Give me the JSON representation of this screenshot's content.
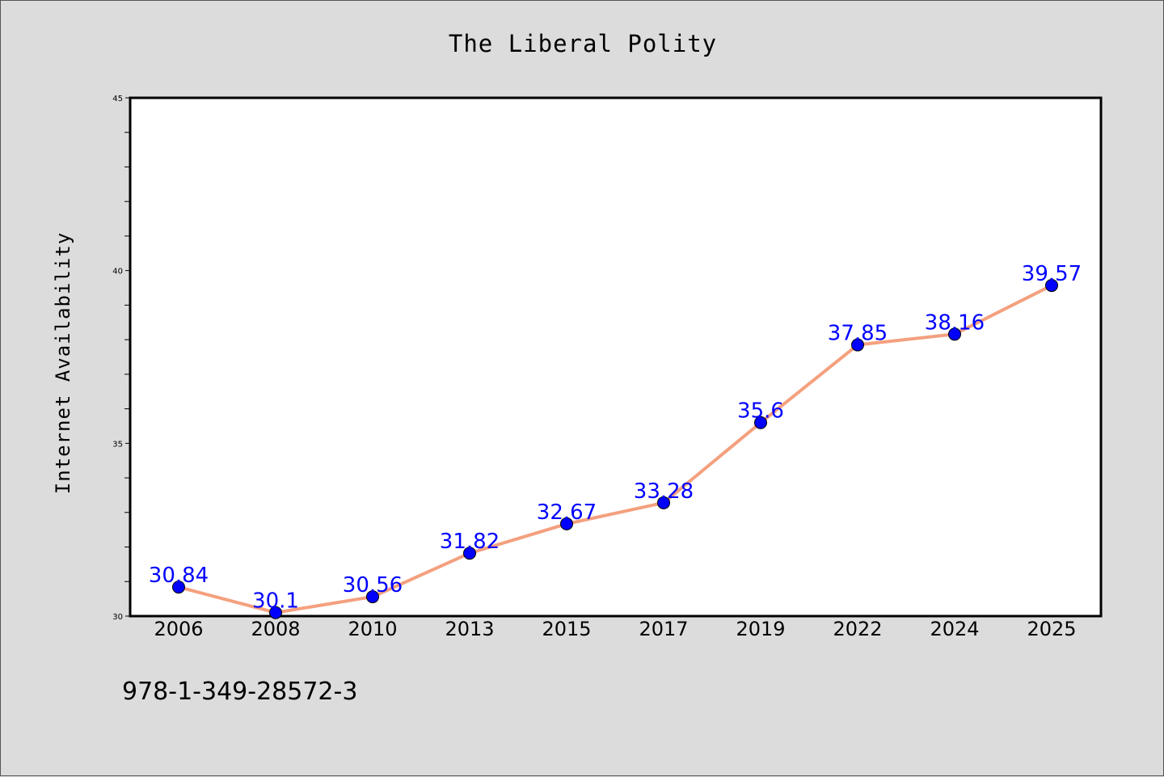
{
  "colors": {
    "background": "#dcdcdc",
    "plot_background": "#ffffff",
    "line": "#f4a07e",
    "marker": "#0000ff",
    "label": "#0000ff"
  },
  "footnote": "978-1-349-28572-3",
  "chart_data": {
    "type": "line",
    "title": "The Liberal Polity",
    "xlabel": "",
    "ylabel": "Internet Availability",
    "categories": [
      "2006",
      "2008",
      "2010",
      "2013",
      "2015",
      "2017",
      "2019",
      "2022",
      "2024",
      "2025"
    ],
    "series": [
      {
        "values": [
          30.84,
          30.1,
          30.56,
          31.82,
          32.67,
          33.28,
          35.6,
          37.85,
          38.16,
          39.57
        ],
        "labels": [
          "30.84",
          "30.1",
          "30.56",
          "31.82",
          "32.67",
          "33.28",
          "35.6",
          "37.85",
          "38.16",
          "39.57"
        ]
      }
    ],
    "ylim": [
      30,
      45
    ],
    "yticks": [
      "30",
      "35",
      "40",
      "45"
    ],
    "ytick_values": [
      30,
      35,
      40,
      45
    ],
    "y_minor_step": 1,
    "grid": false,
    "legend": "none"
  }
}
